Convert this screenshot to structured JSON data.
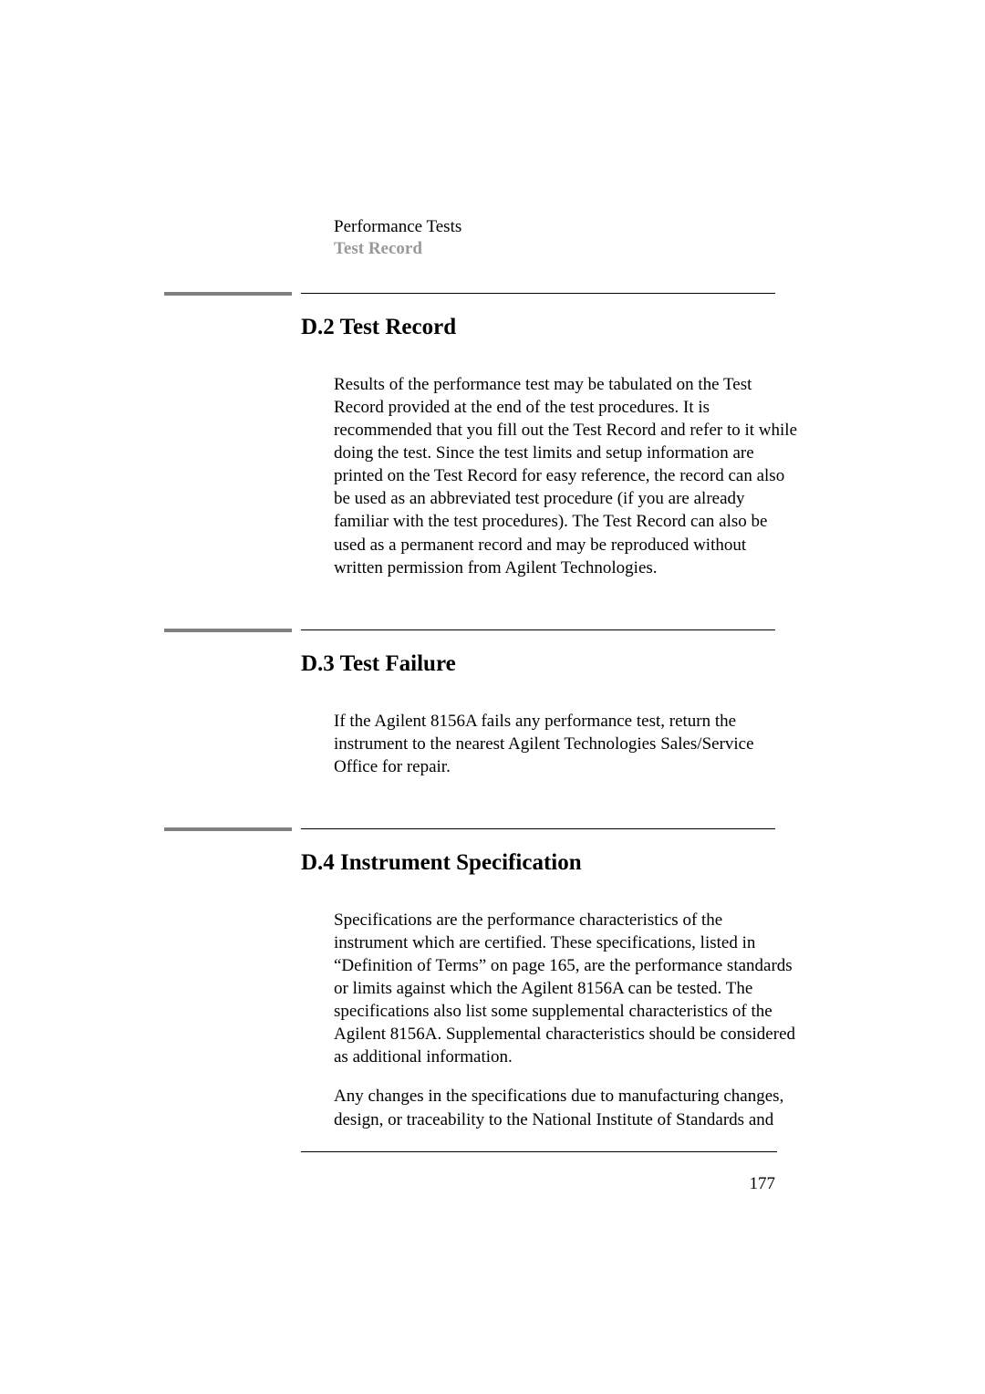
{
  "header": {
    "chapter": "Performance Tests",
    "sectionLabel": "Test Record"
  },
  "sections": [
    {
      "heading": "D.2 Test Record",
      "paragraphs": [
        "Results of the performance test may be tabulated on the Test Record provided at the end of the test procedures. It is recommended that you fill out the Test Record and refer to it while doing the test. Since the test limits and setup information are printed on the Test Record for easy reference, the record can also be used as an abbreviated test procedure (if you are already familiar with the test procedures). The Test Record can also be used as a permanent record and may be reproduced without written permission from Agilent Technologies."
      ]
    },
    {
      "heading": "D.3 Test Failure",
      "paragraphs": [
        "If the Agilent 8156A fails any performance test, return the instrument to the nearest Agilent Technologies Sales/Service Office for repair."
      ]
    },
    {
      "heading": "D.4 Instrument Specification",
      "paragraphs": [
        "Specifications are the performance characteristics of the instrument which are certified. These specifications, listed in “Definition of Terms” on page 165, are the performance standards or limits against which the Agilent 8156A can be tested. The specifications also list some supplemental characteristics of the Agilent 8156A. Supplemental characteristics should be considered as additional information.",
        "Any changes in the specifications due to manufacturing changes, design, or traceability to the National Institute of Standards and"
      ]
    }
  ],
  "pageNumber": "177"
}
